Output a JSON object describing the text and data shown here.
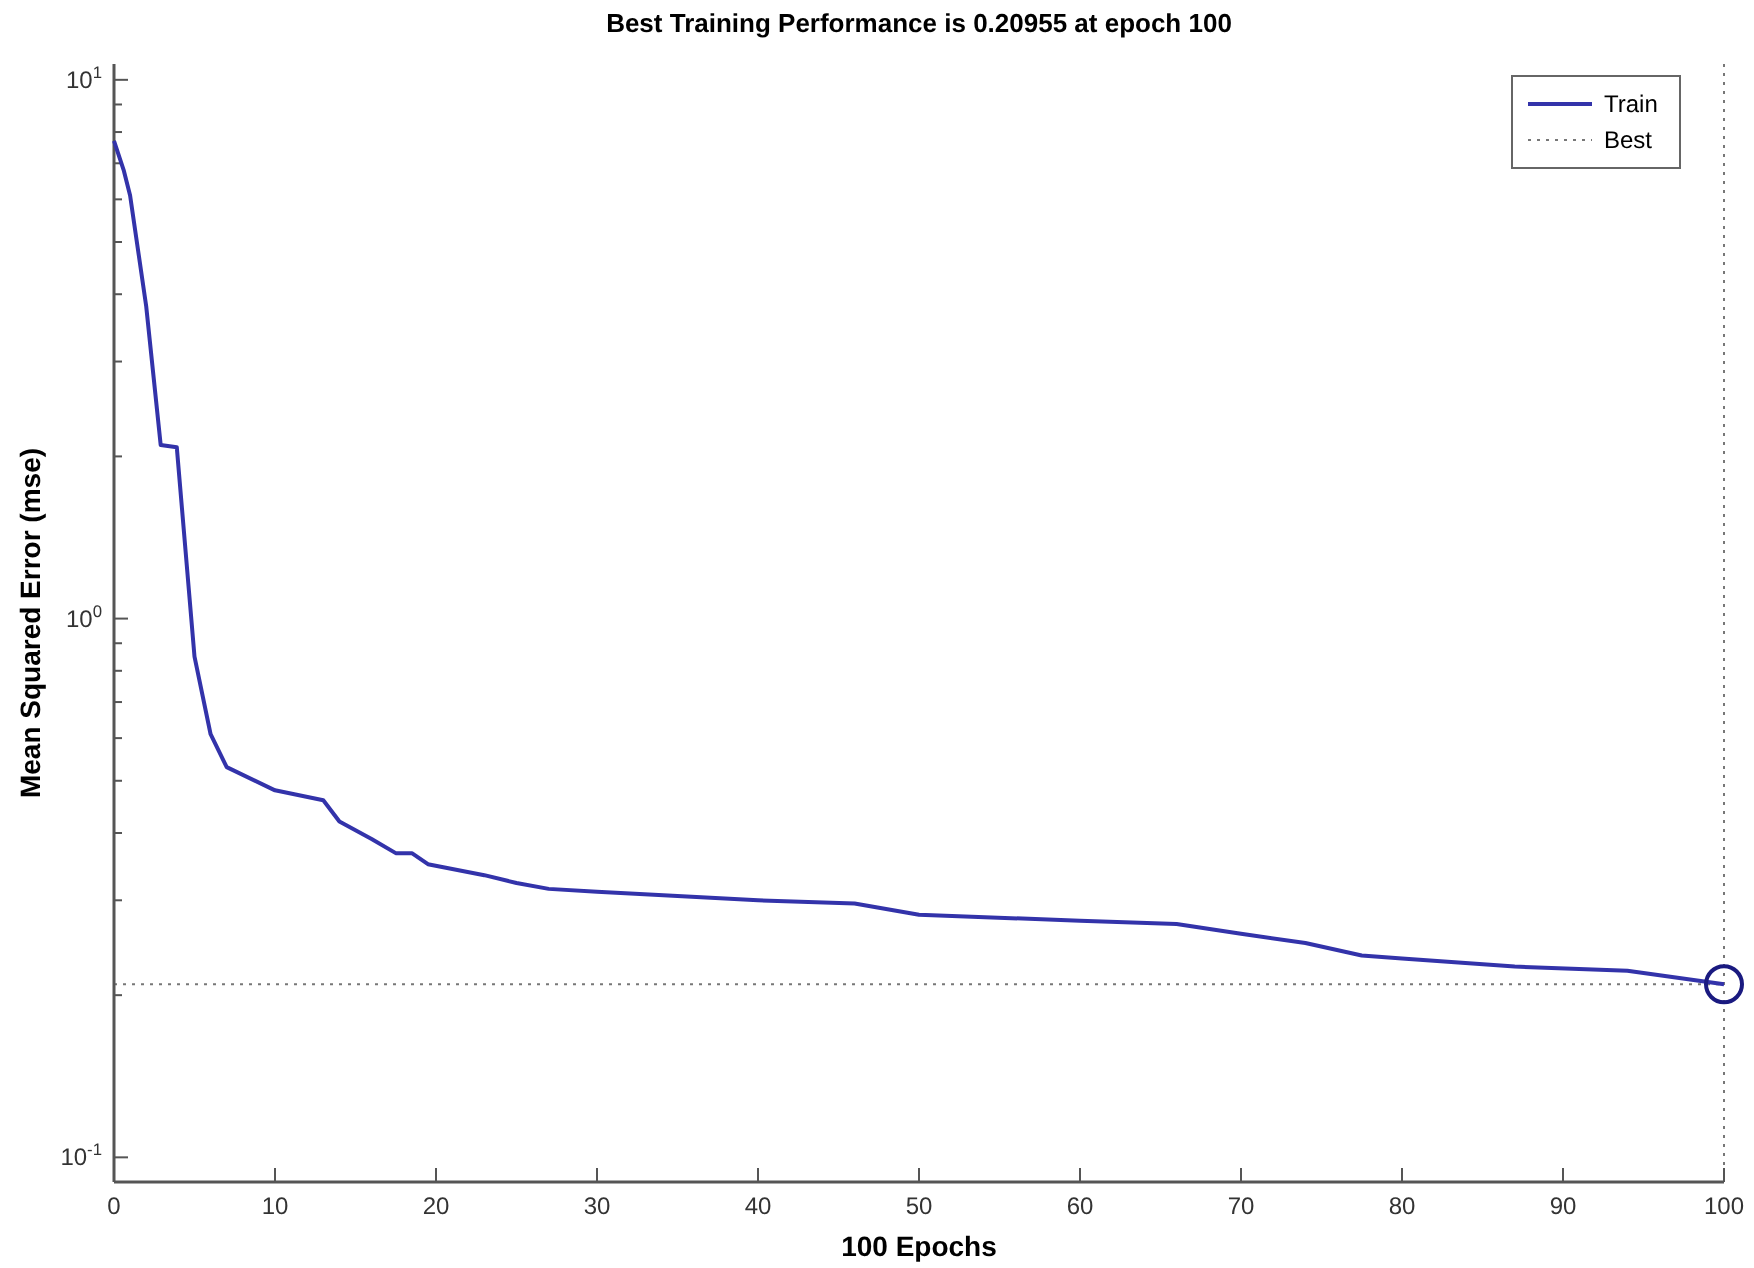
{
  "chart_data": {
    "type": "line",
    "title": "Best Training Performance is 0.20955 at epoch 100",
    "xlabel": "100 Epochs",
    "ylabel": "Mean Squared Error  (mse)",
    "log": "y",
    "xlim": [
      0,
      100
    ],
    "ylim": [
      0.09,
      10.7
    ],
    "xticks": [
      0,
      10,
      20,
      30,
      40,
      50,
      60,
      70,
      80,
      90,
      100
    ],
    "yticks": [
      {
        "value": 0.1,
        "label": "10$^{-1}$"
      },
      {
        "value": 0.2,
        "label": null
      },
      {
        "value": 0.3,
        "label": null
      },
      {
        "value": 0.4,
        "label": null
      },
      {
        "value": 0.5,
        "label": null
      },
      {
        "value": 0.6,
        "label": null
      },
      {
        "value": 0.7,
        "label": null
      },
      {
        "value": 0.8,
        "label": null
      },
      {
        "value": 0.9,
        "label": null
      },
      {
        "value": 1,
        "label": "10$^{0}$"
      },
      {
        "value": 2,
        "label": null
      },
      {
        "value": 3,
        "label": null
      },
      {
        "value": 4,
        "label": null
      },
      {
        "value": 5,
        "label": null
      },
      {
        "value": 6,
        "label": null
      },
      {
        "value": 7,
        "label": null
      },
      {
        "value": 8,
        "label": null
      },
      {
        "value": 9,
        "label": null
      },
      {
        "value": 10,
        "label": "10$^{1}$"
      }
    ],
    "grid": false,
    "legend": "top right",
    "series": [
      {
        "name": "Train",
        "color": "#3333aa",
        "line_style": "solid",
        "marker": "none",
        "x": [
          0,
          0.6,
          1,
          2,
          2.9,
          3.9,
          5,
          6,
          7,
          10,
          13,
          14,
          16,
          17.5,
          18.5,
          19.5,
          23,
          25,
          27,
          30,
          40,
          46,
          50,
          60,
          66,
          70,
          74,
          77.5,
          80,
          87,
          94,
          100
        ],
        "values": [
          7.7,
          6.8,
          6.1,
          3.8,
          2.1,
          2.08,
          0.85,
          0.61,
          0.53,
          0.48,
          0.46,
          0.42,
          0.39,
          0.367,
          0.367,
          0.35,
          0.334,
          0.323,
          0.315,
          0.311,
          0.3,
          0.296,
          0.282,
          0.275,
          0.271,
          0.26,
          0.25,
          0.237,
          0.234,
          0.226,
          0.222,
          0.20955
        ]
      },
      {
        "type": "scatter",
        "color": "#1a1a80",
        "marker": "circle",
        "x": [
          100
        ],
        "values": [
          0.20955
        ]
      }
    ],
    "ref_lines": [
      {
        "axis": "y",
        "value": 0.20955,
        "label": "Best",
        "line_style": "dotted",
        "color": "#777777"
      },
      {
        "axis": "x",
        "value": 100,
        "line_style": "dotted",
        "color": "#777777"
      }
    ]
  }
}
